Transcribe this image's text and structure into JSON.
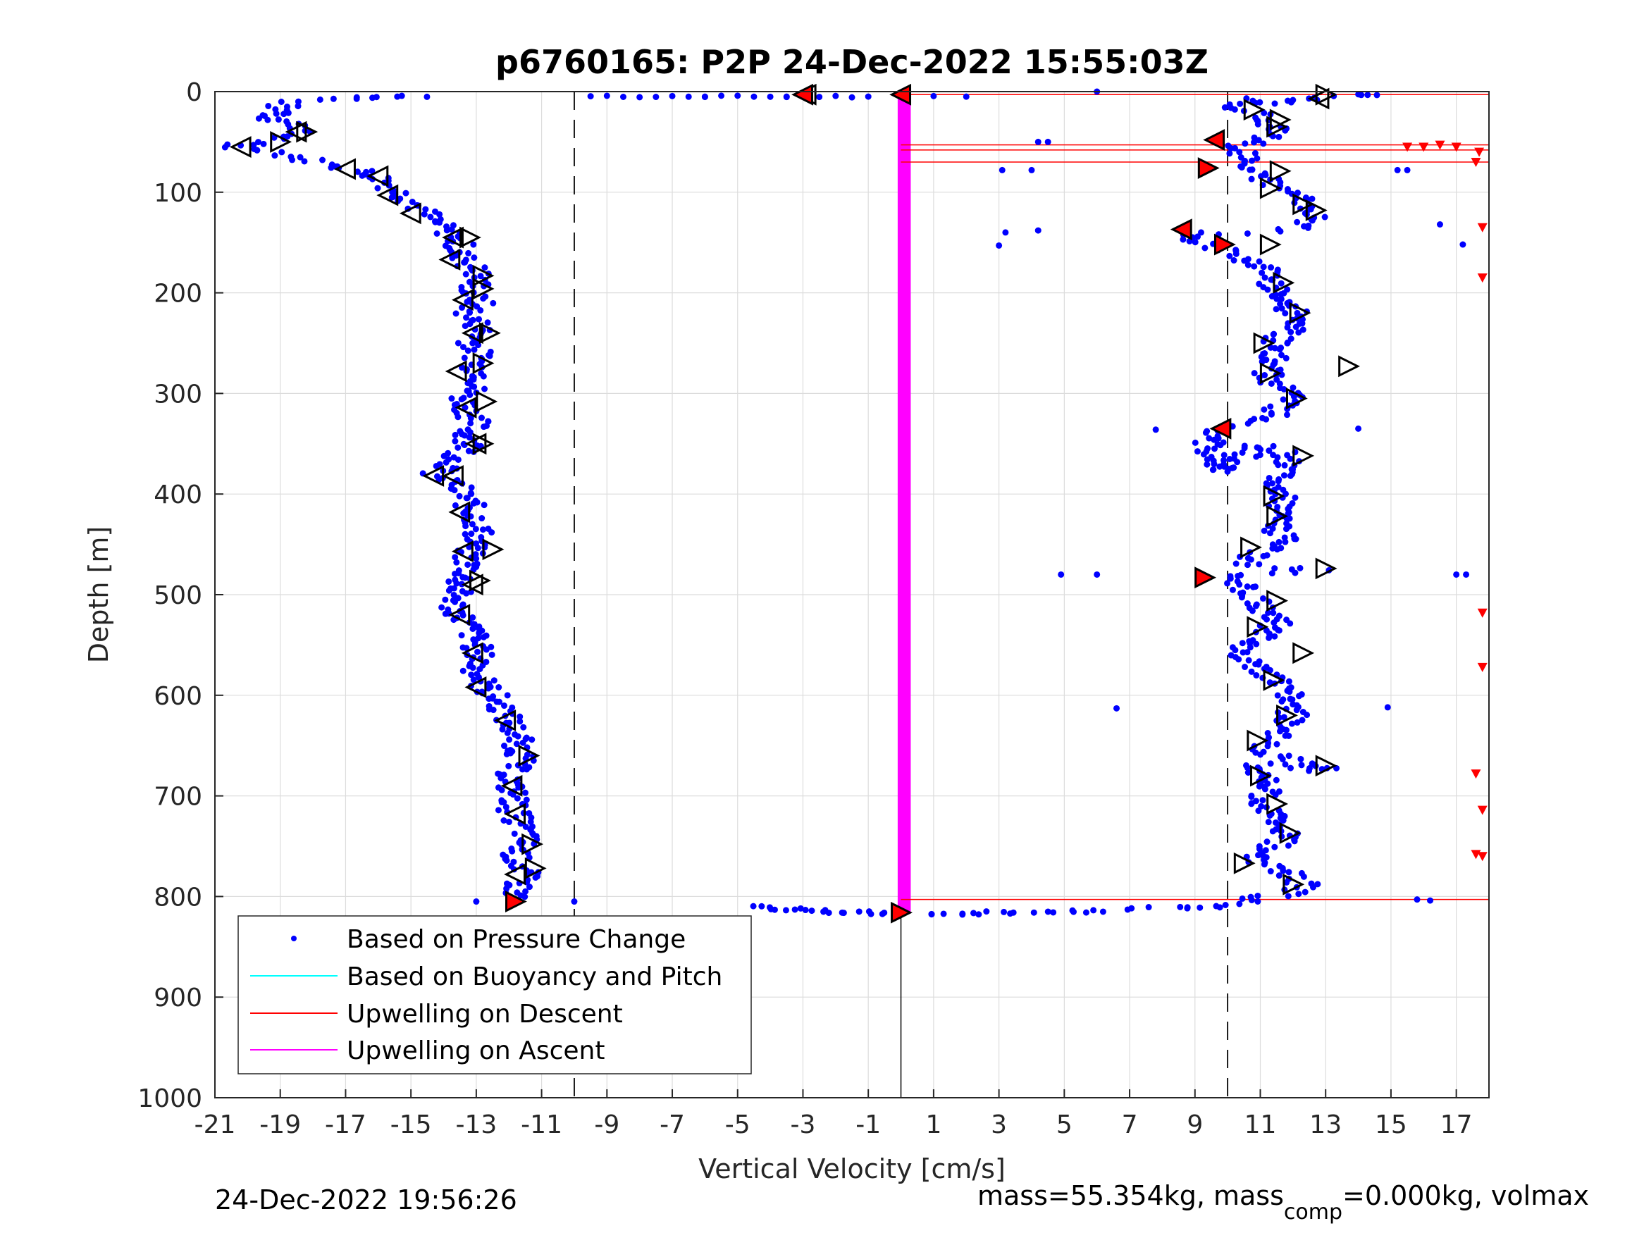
{
  "chart_data": {
    "type": "scatter",
    "title": "p6760165: P2P 24-Dec-2022 15:55:03Z",
    "xlabel": "Vertical Velocity [cm/s]",
    "ylabel": "Depth [m]",
    "xlim": [
      -21,
      18
    ],
    "ylim": [
      0,
      1000
    ],
    "y_reversed": true,
    "grid": true,
    "x_ticks": [
      -21,
      -19,
      -17,
      -15,
      -13,
      -11,
      -9,
      -7,
      -5,
      -3,
      -1,
      1,
      3,
      5,
      7,
      9,
      11,
      13,
      15,
      17
    ],
    "y_ticks": [
      0,
      100,
      200,
      300,
      400,
      500,
      600,
      700,
      800,
      900,
      1000
    ],
    "reference_lines_x": [
      -10,
      0,
      10
    ],
    "legend_position": "bottom-left",
    "series": [
      {
        "name": "Based on Pressure Change",
        "color": "#0000ff",
        "descent": [
          [
            -14.5,
            5
          ],
          [
            -15.8,
            5
          ],
          [
            -16.8,
            7
          ],
          [
            -18.5,
            10
          ],
          [
            -19.2,
            16
          ],
          [
            -18.7,
            22
          ],
          [
            -19.4,
            24
          ],
          [
            -18.9,
            30
          ],
          [
            -18.2,
            35
          ],
          [
            -18.6,
            42
          ],
          [
            -19.1,
            48
          ],
          [
            -20.2,
            52
          ],
          [
            -20.9,
            55
          ],
          [
            -19.5,
            57
          ],
          [
            -18.8,
            62
          ],
          [
            -18.3,
            67
          ],
          [
            -17.6,
            72
          ],
          [
            -17.0,
            76
          ],
          [
            -16.5,
            80
          ],
          [
            -16.1,
            84
          ],
          [
            -15.8,
            90
          ],
          [
            -15.5,
            97
          ],
          [
            -15.2,
            104
          ],
          [
            -14.9,
            110
          ],
          [
            -14.7,
            117
          ],
          [
            -14.4,
            124
          ],
          [
            -14.2,
            131
          ],
          [
            -13.9,
            138
          ],
          [
            -13.7,
            145
          ],
          [
            -13.5,
            152
          ],
          [
            -13.6,
            160
          ],
          [
            -13.3,
            168
          ],
          [
            -13.1,
            176
          ],
          [
            -12.9,
            184
          ],
          [
            -13.0,
            192
          ],
          [
            -13.2,
            200
          ],
          [
            -12.9,
            210
          ],
          [
            -13.3,
            220
          ],
          [
            -13.0,
            230
          ],
          [
            -12.8,
            240
          ],
          [
            -13.1,
            250
          ],
          [
            -12.9,
            262
          ],
          [
            -13.0,
            275
          ],
          [
            -12.7,
            285
          ],
          [
            -13.1,
            295
          ],
          [
            -13.4,
            305
          ],
          [
            -13.2,
            318
          ],
          [
            -13.0,
            330
          ],
          [
            -13.3,
            340
          ],
          [
            -13.1,
            352
          ],
          [
            -13.5,
            362
          ],
          [
            -13.8,
            372
          ],
          [
            -14.3,
            380
          ],
          [
            -13.7,
            390
          ],
          [
            -13.4,
            400
          ],
          [
            -13.2,
            412
          ],
          [
            -13.0,
            425
          ],
          [
            -12.9,
            438
          ],
          [
            -13.1,
            450
          ],
          [
            -13.3,
            462
          ],
          [
            -13.2,
            475
          ],
          [
            -13.5,
            488
          ],
          [
            -13.6,
            500
          ],
          [
            -13.7,
            512
          ],
          [
            -13.4,
            524
          ],
          [
            -13.1,
            538
          ],
          [
            -13.0,
            550
          ],
          [
            -12.9,
            562
          ],
          [
            -13.0,
            575
          ],
          [
            -12.8,
            588
          ],
          [
            -12.5,
            600
          ],
          [
            -12.2,
            612
          ],
          [
            -12.0,
            625
          ],
          [
            -11.8,
            638
          ],
          [
            -11.7,
            650
          ],
          [
            -11.6,
            662
          ],
          [
            -11.9,
            675
          ],
          [
            -12.0,
            688
          ],
          [
            -11.8,
            700
          ],
          [
            -11.9,
            712
          ],
          [
            -11.7,
            725
          ],
          [
            -11.5,
            738
          ],
          [
            -11.6,
            750
          ],
          [
            -11.8,
            762
          ],
          [
            -11.5,
            775
          ],
          [
            -11.7,
            790
          ],
          [
            -11.8,
            802
          ]
        ],
        "ascent": [
          [
            -4.5,
            810
          ],
          [
            -4.0,
            812
          ],
          [
            -3.5,
            813
          ],
          [
            -3.0,
            814
          ],
          [
            -2.0,
            815
          ],
          [
            -1.5,
            816
          ],
          [
            -0.5,
            817
          ],
          [
            0.5,
            817
          ],
          [
            1.5,
            817
          ],
          [
            2.5,
            816
          ],
          [
            3.5,
            816
          ],
          [
            4.5,
            815
          ],
          [
            5.5,
            815
          ],
          [
            6.5,
            814
          ],
          [
            8.0,
            812
          ],
          [
            9.0,
            811
          ],
          [
            10.0,
            810
          ],
          [
            10.5,
            806
          ],
          [
            11.2,
            800
          ],
          [
            12.0,
            795
          ],
          [
            12.5,
            790
          ],
          [
            12.0,
            780
          ],
          [
            11.5,
            772
          ],
          [
            10.8,
            762
          ],
          [
            11.5,
            750
          ],
          [
            11.8,
            738
          ],
          [
            11.6,
            726
          ],
          [
            11.3,
            715
          ],
          [
            11.0,
            705
          ],
          [
            11.2,
            692
          ],
          [
            11.0,
            680
          ],
          [
            10.9,
            668
          ],
          [
            12.6,
            675
          ],
          [
            13.2,
            673
          ],
          [
            11.0,
            655
          ],
          [
            11.3,
            645
          ],
          [
            11.8,
            632
          ],
          [
            12.0,
            620
          ],
          [
            11.7,
            610
          ],
          [
            11.9,
            598
          ],
          [
            11.5,
            585
          ],
          [
            11.0,
            574
          ],
          [
            10.6,
            565
          ],
          [
            10.4,
            552
          ],
          [
            11.2,
            540
          ],
          [
            11.5,
            528
          ],
          [
            11.1,
            515
          ],
          [
            10.8,
            503
          ],
          [
            10.4,
            492
          ],
          [
            10.2,
            480
          ],
          [
            12.8,
            477
          ],
          [
            10.5,
            468
          ],
          [
            11.0,
            458
          ],
          [
            11.8,
            448
          ],
          [
            11.5,
            436
          ],
          [
            11.8,
            424
          ],
          [
            11.6,
            412
          ],
          [
            11.8,
            400
          ],
          [
            11.5,
            390
          ],
          [
            12.0,
            362
          ],
          [
            11.0,
            352
          ],
          [
            9.8,
            378
          ],
          [
            9.6,
            365
          ],
          [
            9.4,
            345
          ],
          [
            9.7,
            335
          ],
          [
            11.2,
            325
          ],
          [
            11.7,
            312
          ],
          [
            12.0,
            300
          ],
          [
            11.4,
            290
          ],
          [
            11.2,
            280
          ],
          [
            11.5,
            268
          ],
          [
            11.3,
            256
          ],
          [
            11.6,
            244
          ],
          [
            12.2,
            232
          ],
          [
            12.0,
            220
          ],
          [
            11.8,
            208
          ],
          [
            11.5,
            196
          ],
          [
            11.3,
            184
          ],
          [
            11.0,
            174
          ],
          [
            10.5,
            165
          ],
          [
            10.0,
            158
          ],
          [
            9.2,
            150
          ],
          [
            8.6,
            142
          ],
          [
            10.8,
            140
          ],
          [
            12.3,
            135
          ],
          [
            12.8,
            124
          ],
          [
            12.5,
            114
          ],
          [
            12.0,
            104
          ],
          [
            11.5,
            94
          ],
          [
            11.0,
            84
          ],
          [
            10.8,
            74
          ],
          [
            10.5,
            64
          ],
          [
            10.2,
            56
          ],
          [
            11.0,
            48
          ],
          [
            11.5,
            40
          ],
          [
            11.2,
            30
          ],
          [
            10.8,
            22
          ],
          [
            10.2,
            15
          ],
          [
            10.5,
            8
          ],
          [
            11.5,
            12
          ],
          [
            12.0,
            8
          ],
          [
            13.0,
            5
          ],
          [
            14.0,
            3
          ],
          [
            14.8,
            2
          ]
        ],
        "outliers": [
          [
            -10.0,
            805
          ],
          [
            -13.0,
            805
          ],
          [
            -6.0,
            5
          ],
          [
            -3.5,
            5
          ],
          [
            2.0,
            5
          ],
          [
            6.0,
            0
          ],
          [
            3.1,
            78
          ],
          [
            4.0,
            78
          ],
          [
            4.2,
            138
          ],
          [
            3.2,
            140
          ],
          [
            3.0,
            153
          ],
          [
            4.9,
            480
          ],
          [
            6.0,
            480
          ],
          [
            7.8,
            336
          ],
          [
            6.6,
            613
          ],
          [
            14.0,
            335
          ],
          [
            14.9,
            612
          ],
          [
            15.2,
            78
          ],
          [
            15.5,
            78
          ],
          [
            16.5,
            132
          ],
          [
            17.2,
            152
          ],
          [
            17.0,
            480
          ],
          [
            17.3,
            480
          ],
          [
            15.8,
            803
          ],
          [
            16.2,
            804
          ],
          [
            4.2,
            50
          ],
          [
            4.5,
            50
          ]
        ],
        "surface_row_x": [
          -9.5,
          -9.0,
          -8.5,
          -8.0,
          -7.5,
          -7.0,
          -6.5,
          -6.0,
          -5.5,
          -5.0,
          -4.5,
          -4.0,
          -3.5,
          -2.5,
          -2.0,
          -1.5,
          -1.0,
          1.0
        ]
      },
      {
        "name": "Based on Buoyancy and Pitch",
        "color": "#00ffff",
        "points": []
      },
      {
        "name": "Upwelling on Descent",
        "color": "#ff0000",
        "lines_depth": [
          3,
          53,
          58,
          70,
          803
        ],
        "markers": [
          [
            15.5,
            55
          ],
          [
            16.0,
            55
          ],
          [
            16.5,
            53
          ],
          [
            17.0,
            55
          ],
          [
            17.7,
            60
          ],
          [
            17.6,
            70
          ],
          [
            17.8,
            135
          ],
          [
            17.8,
            185
          ],
          [
            17.8,
            518
          ],
          [
            17.8,
            572
          ],
          [
            17.6,
            678
          ],
          [
            17.8,
            714
          ],
          [
            17.6,
            758
          ],
          [
            17.8,
            760
          ]
        ]
      },
      {
        "name": "Upwelling on Ascent",
        "color": "#ff00ff",
        "x_band": [
          -0.1,
          0.3
        ],
        "depth_range": [
          0,
          815
        ]
      }
    ],
    "triangles_left": [
      [
        -20.2,
        55
      ],
      [
        -18.5,
        40
      ],
      [
        -17.0,
        77
      ],
      [
        -16.0,
        84
      ],
      [
        -15.7,
        103
      ],
      [
        -15.0,
        121
      ],
      [
        -13.7,
        145
      ],
      [
        -13.8,
        167
      ],
      [
        -13.4,
        207
      ],
      [
        -13.1,
        240
      ],
      [
        -13.6,
        278
      ],
      [
        -13.3,
        314
      ],
      [
        -13.0,
        350
      ],
      [
        -14.3,
        382
      ],
      [
        -13.5,
        418
      ],
      [
        -13.4,
        457
      ],
      [
        -13.1,
        490
      ],
      [
        -13.5,
        520
      ],
      [
        -13.1,
        558
      ],
      [
        -13.0,
        592
      ],
      [
        -12.1,
        625
      ],
      [
        -11.9,
        690
      ],
      [
        -11.8,
        718
      ],
      [
        -11.8,
        778
      ],
      [
        -2.9,
        3
      ],
      [
        -13.7,
        382
      ],
      [
        12.8,
        7
      ]
    ],
    "triangles_right": [
      [
        -19.0,
        50
      ],
      [
        -18.2,
        40
      ],
      [
        -13.2,
        145
      ],
      [
        -12.8,
        183
      ],
      [
        -12.8,
        196
      ],
      [
        -12.6,
        240
      ],
      [
        -12.8,
        270
      ],
      [
        -12.7,
        308
      ],
      [
        -12.8,
        350
      ],
      [
        -12.5,
        455
      ],
      [
        -12.9,
        486
      ],
      [
        -11.4,
        660
      ],
      [
        -11.3,
        748
      ],
      [
        -11.2,
        772
      ],
      [
        13.0,
        3
      ],
      [
        10.8,
        18
      ],
      [
        11.5,
        35
      ],
      [
        11.6,
        28
      ],
      [
        12.7,
        118
      ],
      [
        12.3,
        112
      ],
      [
        11.3,
        96
      ],
      [
        11.6,
        79
      ],
      [
        11.3,
        152
      ],
      [
        11.7,
        190
      ],
      [
        12.2,
        220
      ],
      [
        11.1,
        250
      ],
      [
        11.3,
        280
      ],
      [
        13.7,
        273
      ],
      [
        12.1,
        305
      ],
      [
        12.3,
        362
      ],
      [
        11.4,
        402
      ],
      [
        11.5,
        422
      ],
      [
        10.7,
        453
      ],
      [
        13.0,
        474
      ],
      [
        11.5,
        506
      ],
      [
        10.9,
        532
      ],
      [
        12.3,
        558
      ],
      [
        11.4,
        585
      ],
      [
        11.8,
        620
      ],
      [
        10.9,
        645
      ],
      [
        11.0,
        680
      ],
      [
        11.5,
        708
      ],
      [
        11.9,
        737
      ],
      [
        10.5,
        767
      ],
      [
        12.0,
        788
      ],
      [
        13.0,
        670
      ]
    ],
    "triangles_red": [
      [
        -11.8,
        805
      ],
      [
        0.0,
        3
      ],
      [
        0.0,
        816
      ],
      [
        9.6,
        48
      ],
      [
        9.4,
        76
      ],
      [
        8.6,
        137
      ],
      [
        9.9,
        152
      ],
      [
        9.8,
        335
      ],
      [
        9.3,
        483
      ],
      [
        -3.0,
        3
      ]
    ],
    "legend": [
      "Based on Pressure Change",
      "Based on Buoyancy and Pitch",
      "Upwelling on Descent",
      "Upwelling on Ascent"
    ]
  },
  "footer": {
    "timestamp": "24-Dec-2022 19:56:26",
    "mass_text": "mass=55.354kg, mass",
    "mass_sub": "comp",
    "mass_rest": "=0.000kg, volmax"
  }
}
